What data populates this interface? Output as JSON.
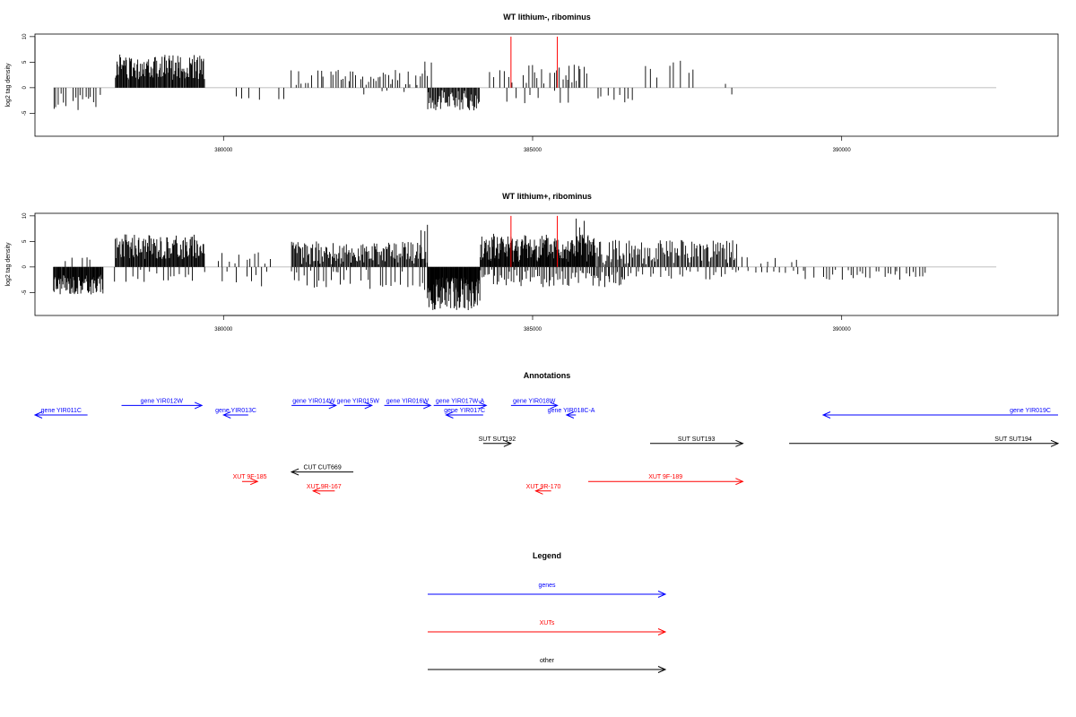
{
  "panels": [
    {
      "title": "WT lithium-, ribominus",
      "ylabel": "log2 tag density",
      "yticks": [
        "-5",
        "0",
        "5",
        "10"
      ],
      "xticks": [
        "380000",
        "385000",
        "390000"
      ]
    },
    {
      "title": "WT lithium+, ribominus",
      "ylabel": "log2 tag density",
      "yticks": [
        "-5",
        "0",
        "5",
        "10"
      ],
      "xticks": [
        "380000",
        "385000",
        "390000"
      ]
    }
  ],
  "annotations": {
    "title": "Annotations",
    "colors": {
      "gene": "#0000ff",
      "xut": "#ff0000",
      "other": "#000000"
    },
    "items": [
      {
        "label": "gene YIR011C",
        "start": 377800,
        "end": 376950,
        "row": 0,
        "type": "gene"
      },
      {
        "label": "gene YIR012W",
        "start": 378350,
        "end": 379650,
        "row": -1,
        "type": "gene"
      },
      {
        "label": "gene YIR013C",
        "start": 380400,
        "end": 380000,
        "row": 0,
        "type": "gene"
      },
      {
        "label": "gene YIR014W",
        "start": 381100,
        "end": 381820,
        "row": -1,
        "type": "gene"
      },
      {
        "label": "gene YIR015W",
        "start": 381950,
        "end": 382400,
        "row": -1,
        "type": "gene"
      },
      {
        "label": "gene YIR016W",
        "start": 382600,
        "end": 383350,
        "row": -1,
        "type": "gene"
      },
      {
        "label": "gene YIR017W-A",
        "start": 383400,
        "end": 384250,
        "row": -1,
        "type": "gene"
      },
      {
        "label": "gene YIR017C",
        "start": 384200,
        "end": 383600,
        "row": 0,
        "type": "gene"
      },
      {
        "label": "gene YIR018W",
        "start": 384650,
        "end": 385400,
        "row": -1,
        "type": "gene"
      },
      {
        "label": "gene YIR018C-A",
        "start": 385700,
        "end": 385550,
        "row": 0,
        "type": "gene"
      },
      {
        "label": "gene YIR019C",
        "start": 393500,
        "end": 389700,
        "row": 0,
        "type": "gene"
      },
      {
        "label": "SUT SUT192",
        "start": 384200,
        "end": 384650,
        "row": 3,
        "type": "other"
      },
      {
        "label": "SUT SUT193",
        "start": 386900,
        "end": 388400,
        "row": 3,
        "type": "other"
      },
      {
        "label": "SUT SUT194",
        "start": 389150,
        "end": 393500,
        "row": 3,
        "type": "other"
      },
      {
        "label": "CUT CUT669",
        "start": 382100,
        "end": 381100,
        "row": 6,
        "type": "other"
      },
      {
        "label": "XUT 9F-185",
        "start": 380300,
        "end": 380550,
        "row": 7,
        "type": "xut"
      },
      {
        "label": "XUT 9R-167",
        "start": 381800,
        "end": 381450,
        "row": 8,
        "type": "xut"
      },
      {
        "label": "XUT 9R-170",
        "start": 385300,
        "end": 385050,
        "row": 8,
        "type": "xut"
      },
      {
        "label": "XUT 9F-189",
        "start": 385900,
        "end": 388400,
        "row": 7,
        "type": "xut"
      }
    ]
  },
  "legend": {
    "title": "Legend",
    "items": [
      {
        "label": "genes",
        "type": "gene"
      },
      {
        "label": "XUTs",
        "type": "xut"
      },
      {
        "label": "other",
        "type": "other"
      }
    ]
  },
  "chart_data": [
    {
      "type": "bar",
      "title": "WT lithium-, ribominus",
      "xlabel": "",
      "ylabel": "log2 tag density",
      "xlim": [
        376950,
        393500
      ],
      "ylim": [
        -9.5,
        10.5
      ],
      "baseline": 0,
      "markers": [
        {
          "x": 384650,
          "y": 10,
          "color": "#ff0000"
        },
        {
          "x": 385400,
          "y": 10,
          "color": "#ff0000"
        }
      ],
      "segments": [
        {
          "from": 377250,
          "to": 378050,
          "step": 40,
          "min": -4.5,
          "max": -1.0,
          "seed": 11
        },
        {
          "from": 378250,
          "to": 379700,
          "step": 12,
          "min": 1.5,
          "max": 6.5,
          "seed": 12
        },
        {
          "from": 380200,
          "to": 380600,
          "step": 120,
          "min": -2.5,
          "max": -1.0,
          "seed": 13
        },
        {
          "from": 380900,
          "to": 381000,
          "step": 100,
          "min": -3.0,
          "max": -2.0,
          "seed": 14
        },
        {
          "from": 381100,
          "to": 383300,
          "step": 40,
          "min": 0.5,
          "max": 3.5,
          "seed": 15
        },
        {
          "from": 382300,
          "to": 383000,
          "step": 120,
          "min": -1.5,
          "max": -0.5,
          "seed": 16
        },
        {
          "from": 383300,
          "to": 384150,
          "step": 15,
          "min": -4.5,
          "max": -0.5,
          "seed": 17
        },
        {
          "from": 383250,
          "to": 383350,
          "step": 50,
          "min": 4.5,
          "max": 5.5,
          "seed": 18
        },
        {
          "from": 384300,
          "to": 384850,
          "step": 60,
          "min": 1.0,
          "max": 3.5,
          "seed": 19
        },
        {
          "from": 384900,
          "to": 385900,
          "step": 35,
          "min": 0.8,
          "max": 4.5,
          "seed": 20
        },
        {
          "from": 384600,
          "to": 385700,
          "step": 120,
          "min": -3.5,
          "max": -0.5,
          "seed": 21
        },
        {
          "from": 386000,
          "to": 386600,
          "step": 60,
          "min": -3.0,
          "max": -1.0,
          "seed": 22
        },
        {
          "from": 386800,
          "to": 387650,
          "step": 100,
          "min": 1.5,
          "max": 5.5,
          "seed": 23
        },
        {
          "from": 388100,
          "to": 388250,
          "step": 120,
          "min": -1.5,
          "max": 1.0,
          "seed": 24
        }
      ]
    },
    {
      "type": "bar",
      "title": "WT lithium+, ribominus",
      "xlabel": "",
      "ylabel": "log2 tag density",
      "xlim": [
        376950,
        393500
      ],
      "ylim": [
        -9.5,
        10.5
      ],
      "baseline": 0,
      "markers": [
        {
          "x": 384650,
          "y": 10,
          "color": "#ff0000"
        },
        {
          "x": 385400,
          "y": 10,
          "color": "#ff0000"
        }
      ],
      "segments": [
        {
          "from": 377250,
          "to": 378050,
          "step": 10,
          "min": -5.5,
          "max": -1.5,
          "seed": 31
        },
        {
          "from": 377300,
          "to": 377900,
          "step": 80,
          "min": 0.5,
          "max": 2.0,
          "seed": 32
        },
        {
          "from": 378250,
          "to": 379700,
          "step": 12,
          "min": 1.5,
          "max": 6.5,
          "seed": 33
        },
        {
          "from": 378250,
          "to": 379700,
          "step": 60,
          "min": -3.0,
          "max": -0.5,
          "seed": 34
        },
        {
          "from": 379900,
          "to": 380800,
          "step": 60,
          "min": 0.5,
          "max": 3.0,
          "seed": 35
        },
        {
          "from": 379900,
          "to": 380800,
          "step": 80,
          "min": -4.0,
          "max": -0.5,
          "seed": 36
        },
        {
          "from": 381100,
          "to": 383300,
          "step": 15,
          "min": 0.5,
          "max": 5.0,
          "seed": 37
        },
        {
          "from": 381100,
          "to": 383300,
          "step": 40,
          "min": -4.5,
          "max": -0.5,
          "seed": 38
        },
        {
          "from": 383200,
          "to": 383300,
          "step": 50,
          "min": 7.0,
          "max": 8.5,
          "seed": 39
        },
        {
          "from": 383300,
          "to": 384150,
          "step": 8,
          "min": -8.5,
          "max": -2.0,
          "seed": 40
        },
        {
          "from": 384150,
          "to": 386000,
          "step": 10,
          "min": 1.0,
          "max": 6.5,
          "seed": 41
        },
        {
          "from": 384150,
          "to": 386500,
          "step": 30,
          "min": -4.0,
          "max": -0.5,
          "seed": 42
        },
        {
          "from": 385700,
          "to": 385850,
          "step": 60,
          "min": 7.5,
          "max": 9.5,
          "seed": 43
        },
        {
          "from": 386000,
          "to": 388300,
          "step": 20,
          "min": 0.5,
          "max": 5.5,
          "seed": 44
        },
        {
          "from": 386000,
          "to": 388300,
          "step": 60,
          "min": -2.5,
          "max": -0.5,
          "seed": 45
        },
        {
          "from": 388300,
          "to": 389400,
          "step": 80,
          "min": 0.5,
          "max": 2.0,
          "seed": 46
        },
        {
          "from": 388300,
          "to": 389400,
          "step": 100,
          "min": -1.5,
          "max": -0.5,
          "seed": 47
        },
        {
          "from": 389400,
          "to": 391350,
          "step": 50,
          "min": -2.5,
          "max": -0.5,
          "seed": 48
        }
      ]
    }
  ]
}
